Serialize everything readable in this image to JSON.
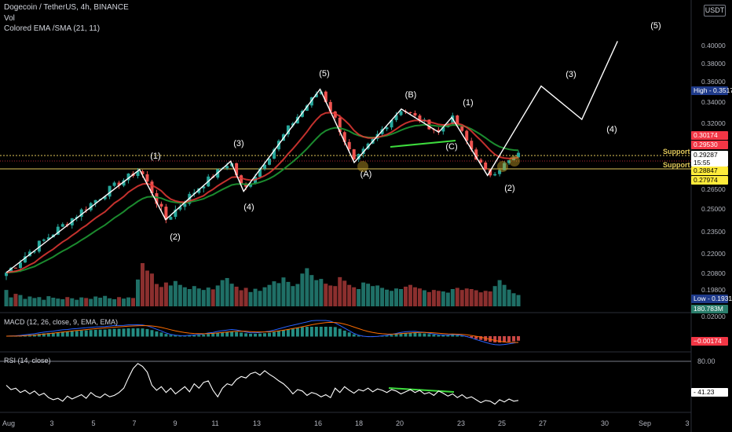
{
  "header": {
    "symbol_line": "Dogecoin / TetherUS, 4h, BINANCE",
    "volume_label": "Vol",
    "indicator_label": "Colored EMA /SMA (21, 11)"
  },
  "currency_badge": "USDT",
  "colors": {
    "background": "#000000",
    "bull": "#26a69a",
    "bear": "#ef5350",
    "ema_fast": "#e53935",
    "ema_slow": "#1b8a2e",
    "wave_line": "#ffffff",
    "support_line": "#e0c85a",
    "divergence": "#3ddc3d",
    "macd_line": "#2962ff",
    "signal_line": "#ff6d00",
    "axis_text": "#b2b5be"
  },
  "chart_data": {
    "type": "candlestick",
    "x_ticks": [
      "Aug",
      "3",
      "5",
      "7",
      "9",
      "11",
      "13",
      "16",
      "18",
      "20",
      "23",
      "25",
      "27",
      "30",
      "Sep",
      "3"
    ],
    "price_ticks": [
      "0.40000",
      "0.38000",
      "0.36000",
      "0.34000",
      "0.32000",
      "0.30174",
      "0.29530",
      "0.29287",
      "0.28847",
      "0.27974",
      "0.26500",
      "0.25000",
      "0.23500",
      "0.22000",
      "0.20800",
      "0.19800",
      "0.19310",
      "0.02000"
    ],
    "high_label": "High",
    "high_value": "0.35170",
    "low_label": "Low",
    "low_value": "0.19310",
    "volume_value": "180.783M",
    "price_tags": [
      {
        "value": "0.30174",
        "color": "#f23645",
        "text_color": "#ffffff"
      },
      {
        "value": "0.29530",
        "color": "#f23645",
        "text_color": "#ffffff"
      },
      {
        "value": "0.29287",
        "sub": "15:55",
        "color": "#ffffff",
        "text_color": "#000000"
      },
      {
        "value": "0.28847",
        "color": "#ffeb3b",
        "text_color": "#000000"
      },
      {
        "value": "0.27974",
        "color": "#ffeb3b",
        "text_color": "#000000"
      }
    ],
    "support_labels": [
      "Support",
      "Support"
    ],
    "support_levels": [
      0.2905,
      0.2818
    ],
    "wave_labels": [
      "(1)",
      "(2)",
      "(3)",
      "(4)",
      "(5)",
      "(A)",
      "(B)",
      "(C)",
      "(1)",
      "(2)",
      "(3)",
      "(4)",
      "(5)"
    ],
    "wave_path": [
      {
        "t": 0,
        "p": 0.208
      },
      {
        "t": 8.2,
        "p": 0.281
      },
      {
        "t": 9.8,
        "p": 0.243
      },
      {
        "t": 13.8,
        "p": 0.288
      },
      {
        "t": 14.6,
        "p": 0.263
      },
      {
        "t": 19.3,
        "p": 0.352
      },
      {
        "t": 21.4,
        "p": 0.287
      },
      {
        "t": 24.3,
        "p": 0.333
      },
      {
        "t": 26.6,
        "p": 0.312
      },
      {
        "t": 27.4,
        "p": 0.325
      },
      {
        "t": 29.6,
        "p": 0.276
      },
      {
        "t": 32.9,
        "p": 0.355
      },
      {
        "t": 35.4,
        "p": 0.323
      },
      {
        "t": 37.6,
        "p": 0.405
      }
    ],
    "last_candle_index": 109,
    "volume_values": [
      55,
      30,
      42,
      38,
      25,
      33,
      28,
      31,
      22,
      34,
      29,
      26,
      24,
      31,
      27,
      22,
      30,
      28,
      25,
      33,
      29,
      35,
      27,
      24,
      31,
      26,
      30,
      28,
      90,
      145,
      120,
      110,
      75,
      65,
      80,
      70,
      85,
      72,
      64,
      58,
      68,
      60,
      55,
      63,
      57,
      70,
      88,
      95,
      76,
      66,
      54,
      62,
      48,
      59,
      52,
      64,
      72,
      84,
      78,
      97,
      82,
      68,
      75,
      110,
      128,
      105,
      88,
      92,
      76,
      70,
      68,
      98,
      86,
      72,
      64,
      58,
      80,
      76,
      68,
      70,
      62,
      56,
      52,
      60,
      58,
      66,
      72,
      64,
      60,
      54,
      48,
      55,
      52,
      50,
      46,
      58,
      62,
      55,
      60,
      58,
      54,
      47,
      52,
      50,
      68,
      88,
      72,
      56,
      44,
      38
    ],
    "macd_label": "MACD (12, 26, close, 9, EMA, EMA)",
    "macd_value": "−0.00174",
    "rsi_label": "RSI (14, close)",
    "rsi_level": "80.00",
    "rsi_value": "41.23",
    "rsi_values": [
      62,
      56,
      58,
      52,
      55,
      50,
      54,
      48,
      51,
      45,
      42,
      44,
      40,
      47,
      43,
      46,
      49,
      44,
      52,
      47,
      45,
      50,
      46,
      48,
      52,
      58,
      72,
      85,
      92,
      88,
      80,
      62,
      55,
      60,
      52,
      58,
      50,
      55,
      60,
      53,
      64,
      58,
      66,
      68,
      55,
      46,
      58,
      64,
      62,
      70,
      74,
      72,
      78,
      80,
      76,
      82,
      77,
      73,
      68,
      64,
      58,
      50,
      56,
      54,
      48,
      52,
      50,
      46,
      49,
      45,
      58,
      52,
      60,
      55,
      51,
      56,
      54,
      58,
      53,
      57,
      55,
      52,
      56,
      54,
      50,
      53,
      56,
      52,
      55,
      50,
      52,
      48,
      54,
      51,
      47,
      50,
      45,
      49,
      44,
      46,
      42,
      38,
      41,
      40,
      36,
      42,
      39,
      43,
      40,
      41
    ]
  }
}
